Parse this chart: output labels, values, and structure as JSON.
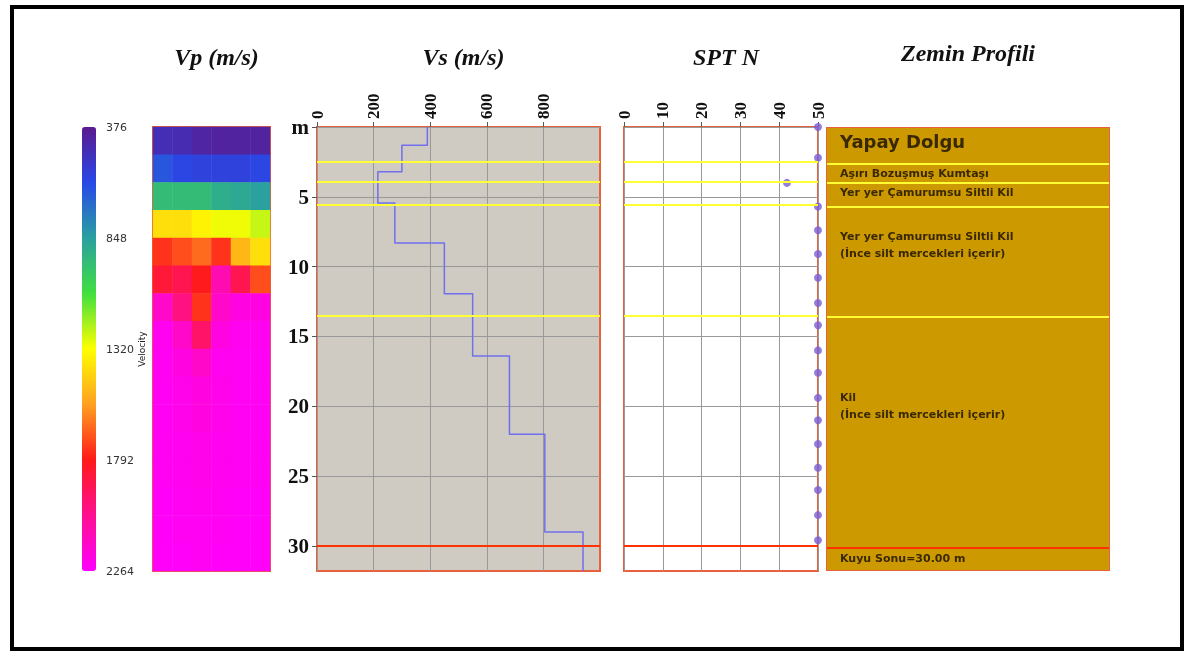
{
  "chart_data": [
    {
      "type": "heatmap",
      "title": "Vp (m/s)",
      "clabel": "Velocity",
      "clim": [
        376,
        2264
      ],
      "cticks": [
        376,
        848,
        1320,
        1792,
        2264
      ],
      "categories": [
        null,
        null,
        null,
        null,
        null,
        null
      ],
      "y_categories": [
        null,
        null,
        null,
        null,
        null,
        null,
        null,
        null,
        null,
        null,
        null,
        null,
        null,
        null,
        null,
        null
      ],
      "cells": [
        [
          480,
          470,
          430,
          420,
          420,
          420
        ],
        [
          650,
          600,
          580,
          580,
          580,
          600
        ],
        [
          950,
          950,
          950,
          900,
          880,
          850
        ],
        [
          1400,
          1400,
          1350,
          1300,
          1300,
          1250
        ],
        [
          1750,
          1700,
          1650,
          1750,
          1500,
          1400
        ],
        [
          1850,
          1900,
          1800,
          2100,
          1900,
          1700
        ],
        [
          2150,
          2000,
          1750,
          2150,
          2200,
          2200
        ],
        [
          2230,
          2150,
          1950,
          2200,
          2230,
          2230
        ],
        [
          2240,
          2200,
          2150,
          2230,
          2240,
          2240
        ],
        [
          2240,
          2220,
          2200,
          2220,
          2240,
          2240
        ],
        [
          2240,
          2220,
          2200,
          2220,
          2240,
          2240
        ],
        [
          2240,
          2230,
          2220,
          2230,
          2240,
          2240
        ],
        [
          2240,
          2230,
          2220,
          2230,
          2240,
          2240
        ],
        [
          2250,
          2240,
          2230,
          2240,
          2250,
          2250
        ],
        [
          2250,
          2240,
          2240,
          2240,
          2250,
          2250
        ],
        [
          2250,
          2250,
          2240,
          2250,
          2250,
          2250
        ]
      ]
    },
    {
      "type": "line",
      "title": "Vs (m/s)",
      "color": "#7070ee",
      "marker": "none",
      "grid": true,
      "x": [
        390,
        390,
        300,
        300,
        215,
        215,
        275,
        275,
        450,
        450,
        550,
        550,
        680,
        680,
        805,
        805,
        940,
        940
      ],
      "values": [
        0,
        1.3,
        1.3,
        3.2,
        3.2,
        5.45,
        5.45,
        8.3,
        8.3,
        11.95,
        11.95,
        16.4,
        16.4,
        22,
        22,
        29,
        29,
        31.8
      ],
      "xlim": [
        0,
        1000
      ],
      "xticks": [
        0,
        200,
        400,
        600,
        800
      ],
      "ylim": [
        31.8,
        0
      ],
      "yticks": [
        {
          "value": 0,
          "label": "m"
        },
        5,
        10,
        15,
        20,
        25,
        30
      ],
      "ref_lines": [
        {
          "axis": "y",
          "value": 2.5,
          "color": "#ffff33"
        },
        {
          "axis": "y",
          "value": 3.9,
          "color": "#ffff33"
        },
        {
          "axis": "y",
          "value": 5.6,
          "color": "#ffff33"
        },
        {
          "axis": "y",
          "value": 13.5,
          "color": "#ffff33"
        },
        {
          "axis": "y",
          "value": 30,
          "color": "#ff3300"
        }
      ]
    },
    {
      "type": "scatter",
      "title": "SPT N",
      "color": "#7b5cd6",
      "marker": "circle",
      "grid": true,
      "tick_labels": "x",
      "x": [
        50,
        50,
        42,
        50,
        50,
        50,
        50,
        50,
        50,
        50,
        50,
        50,
        50,
        50,
        50,
        50,
        50,
        50
      ],
      "values": [
        0,
        2.2,
        4.0,
        5.7,
        7.4,
        9.1,
        10.8,
        12.6,
        14.2,
        16.0,
        17.6,
        19.4,
        21.0,
        22.7,
        24.4,
        26.0,
        27.8,
        29.6
      ],
      "xlim": [
        0,
        50
      ],
      "xticks": [
        0,
        10,
        20,
        30,
        40,
        50
      ],
      "ylim": [
        31.8,
        0
      ],
      "yticks": [
        0,
        5,
        10,
        15,
        20,
        25,
        30
      ],
      "ref_lines": [
        {
          "axis": "y",
          "value": 2.5,
          "color": "#ffff33"
        },
        {
          "axis": "y",
          "value": 3.9,
          "color": "#ffff33"
        },
        {
          "axis": "y",
          "value": 5.6,
          "color": "#ffff33"
        },
        {
          "axis": "y",
          "value": 13.5,
          "color": "#ffff33"
        },
        {
          "axis": "y",
          "value": 30,
          "color": "#ff3300"
        }
      ]
    },
    {
      "type": "other",
      "title": "Zemin Profili",
      "annotations": [
        "Yapay Dolgu",
        "Aşırı Bozuşmuş Kumtaşı",
        "Yer yer Çamurumsu Siltli Kil",
        "Yer yer Çamurumsu Siltli Kil\n(İnce silt mercekleri içerir)",
        "Kil\n(İnce silt mercekleri içerir)",
        "Kuyu Sonu=30.00 m"
      ]
    }
  ]
}
